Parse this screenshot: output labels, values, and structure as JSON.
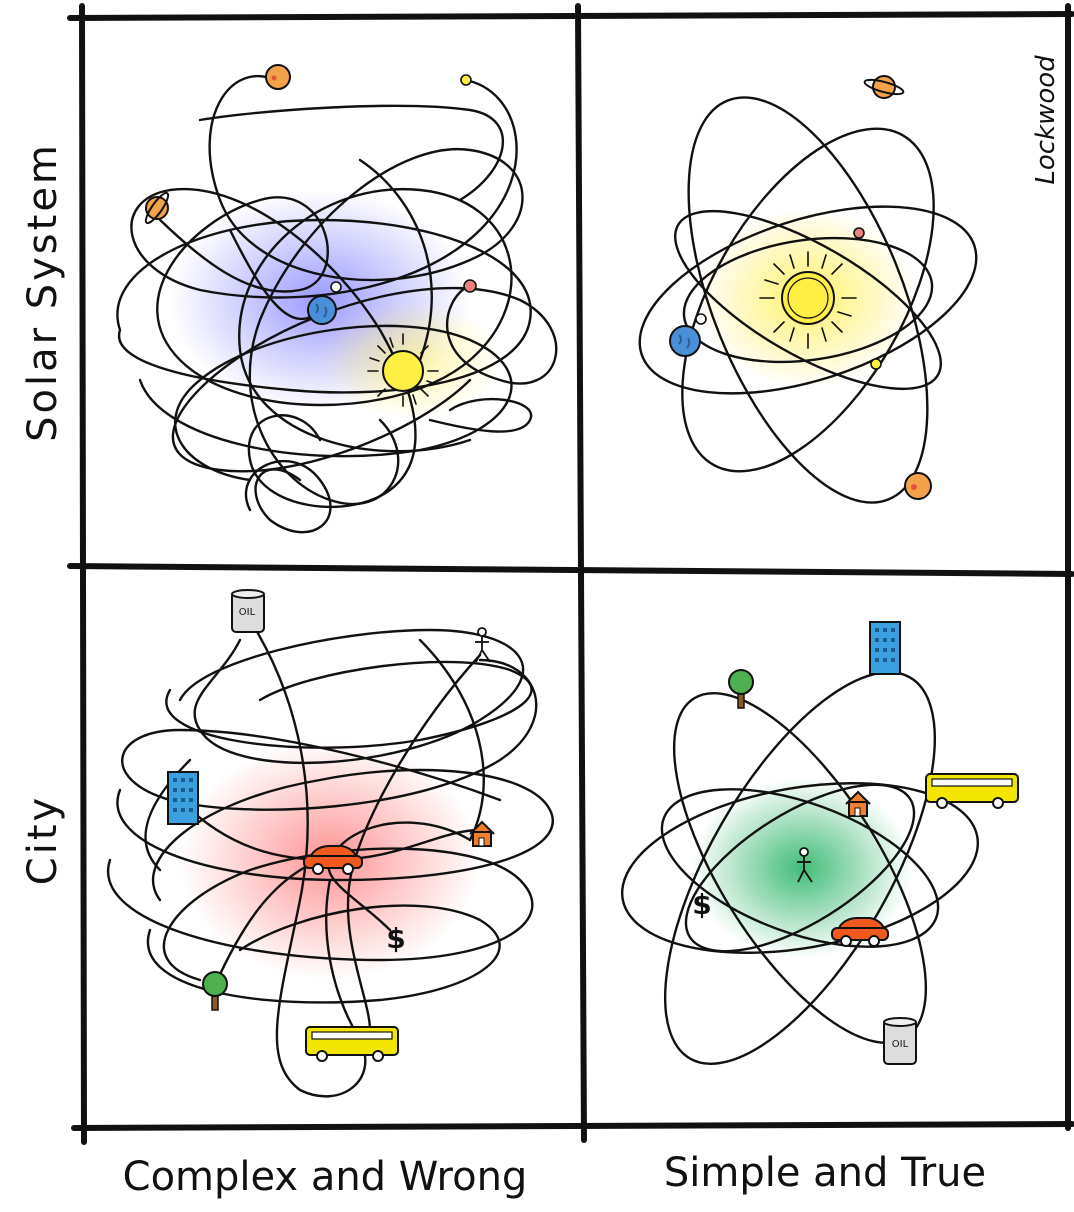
{
  "rows": [
    "Solar System",
    "City"
  ],
  "columns": [
    "Complex and Wrong",
    "Simple and True"
  ],
  "signature": "Lockwood",
  "icons": {
    "oil_label": "OIL",
    "dollar": "$"
  },
  "colors": {
    "ink": "#111111",
    "solar_complex_glow": "#7b7bff",
    "solar_simple_glow": "#ffee55",
    "city_complex_glow": "#ff8080",
    "city_simple_glow": "#2fbf6a",
    "sun": "#ffee44",
    "earth": "#4a90d9",
    "mars": "#f08080",
    "jupiter": "#f4a24a",
    "saturn": "#f4a24a",
    "mercury": "#ffee44",
    "car": "#f05a1e",
    "bus": "#f2e500",
    "building": "#3aa0e0",
    "tree": "#4caf50",
    "house": "#f08030"
  }
}
